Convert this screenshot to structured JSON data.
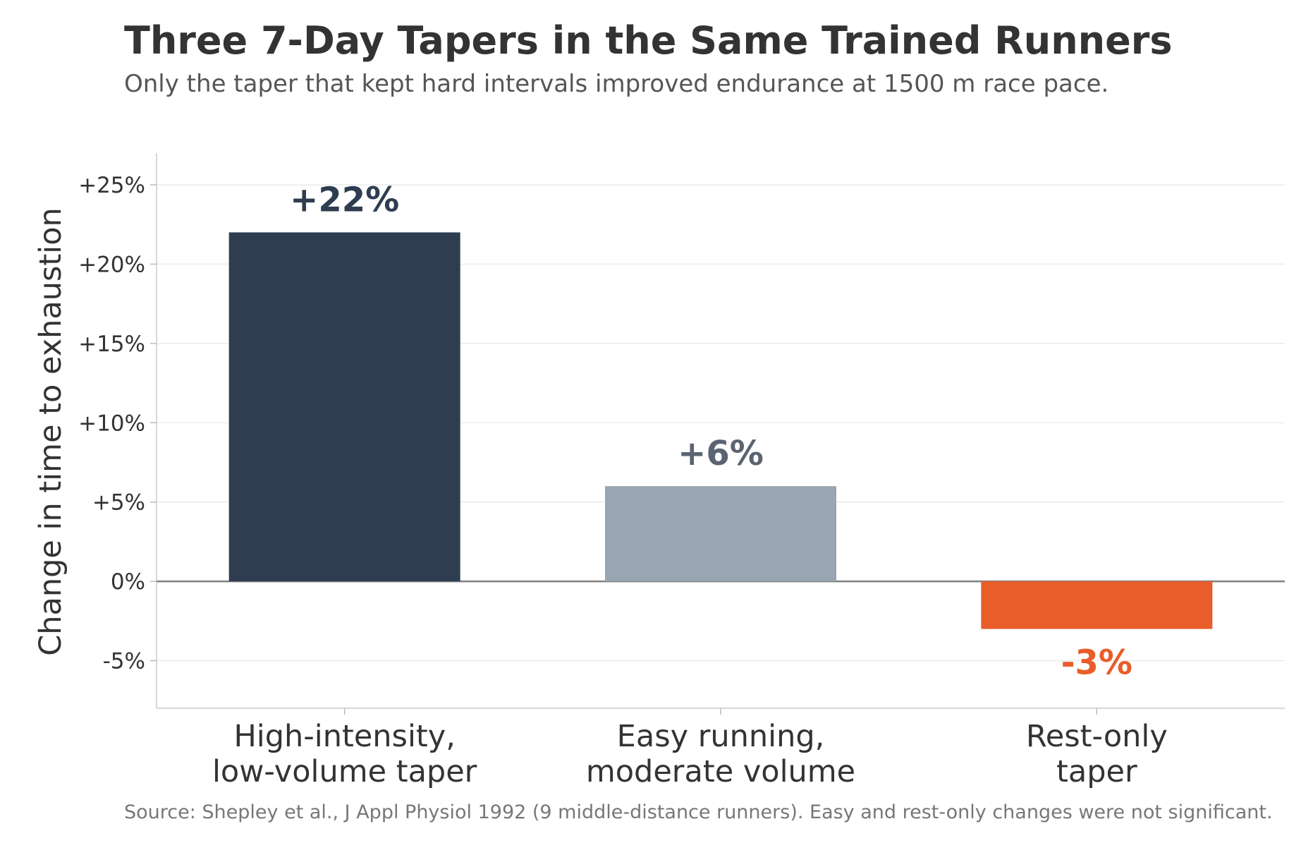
{
  "chart_data": {
    "type": "bar",
    "title": "Three 7-Day Tapers in the Same Trained Runners",
    "subtitle": "Only the taper that kept hard intervals improved endurance at 1500 m race pace.",
    "ylabel": "Change in time to exhaustion",
    "xlabel": "",
    "ylim": [
      -8,
      27
    ],
    "yticks": [
      -5,
      0,
      5,
      10,
      15,
      20,
      25
    ],
    "ytick_labels": [
      "-5%",
      "0%",
      "+5%",
      "+10%",
      "+15%",
      "+20%",
      "+25%"
    ],
    "grid": "horizontal",
    "categories": [
      [
        "High-intensity,",
        "low-volume taper"
      ],
      [
        "Easy running,",
        "moderate volume"
      ],
      [
        "Rest-only",
        "taper"
      ]
    ],
    "values": [
      22,
      6,
      -3
    ],
    "data_labels": [
      "+22%",
      "+6%",
      "-3%"
    ],
    "bar_colors": [
      "#2e3d4f",
      "#99a5b0",
      "#e85d2a"
    ],
    "label_colors": [
      "#2e3d4f",
      "#5b6470",
      "#e85d2a"
    ],
    "source": "Source: Shepley et al., J Appl Physiol 1992 (9 middle-distance runners). Easy and rest-only changes were not significant."
  }
}
